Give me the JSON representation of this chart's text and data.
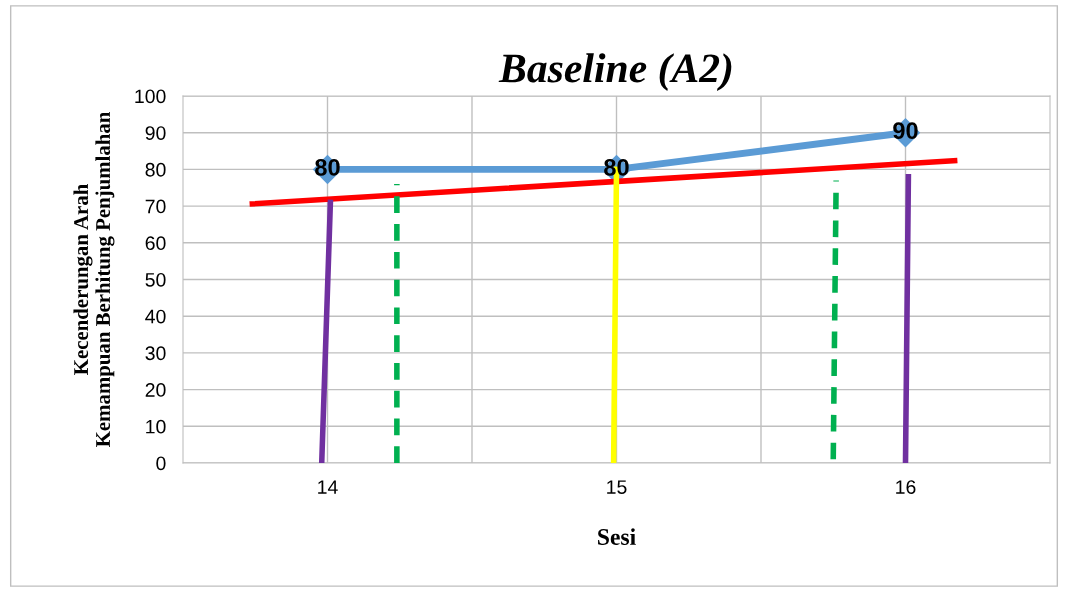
{
  "chart_data": {
    "type": "line",
    "title": "Baseline (A2)",
    "xlabel": "Sesi",
    "ylabel": "Kecenderungan Arah\nKemampuan Berhitung Penjumlahan",
    "xlim": [
      13.5,
      16.5
    ],
    "xticks": [
      14,
      {
        "value": 14.5,
        "label": null
      },
      15,
      {
        "value": 15.5,
        "label": null
      },
      16
    ],
    "ylim": [
      0,
      100
    ],
    "yticks": [
      0,
      10,
      20,
      30,
      40,
      50,
      60,
      70,
      80,
      90,
      100
    ],
    "grid": true,
    "series": [
      {
        "x": [
          14,
          15,
          16
        ],
        "values": [
          80,
          80,
          90
        ],
        "color": "#5b9bd5",
        "marker": "diamond",
        "line_style": "solid",
        "value_labels": [
          "80",
          "80",
          "90"
        ]
      },
      {
        "x": [
          13.74,
          16.17
        ],
        "values": [
          70.6,
          82.4
        ],
        "color": "#ff0000",
        "marker": "none",
        "line_style": "solid"
      },
      {
        "x": [
          13.98,
          14.01
        ],
        "values": [
          0,
          71
        ],
        "color": "#7030a0",
        "marker": "none",
        "line_style": "solid"
      },
      {
        "x": [
          14.24,
          14.24
        ],
        "values": [
          0,
          76
        ],
        "color": "#00b050",
        "marker": "none",
        "line_style": "dashed"
      },
      {
        "x": [
          14.99,
          15.0
        ],
        "values": [
          0,
          80
        ],
        "color": "#ffff00",
        "marker": "none",
        "line_style": "solid"
      },
      {
        "x": [
          15.75,
          15.76
        ],
        "values": [
          1,
          77
        ],
        "color": "#00b050",
        "marker": "none",
        "line_style": "dashed"
      },
      {
        "x": [
          16.0,
          16.01
        ],
        "values": [
          0,
          78
        ],
        "color": "#7030a0",
        "marker": "none",
        "line_style": "solid"
      }
    ]
  }
}
